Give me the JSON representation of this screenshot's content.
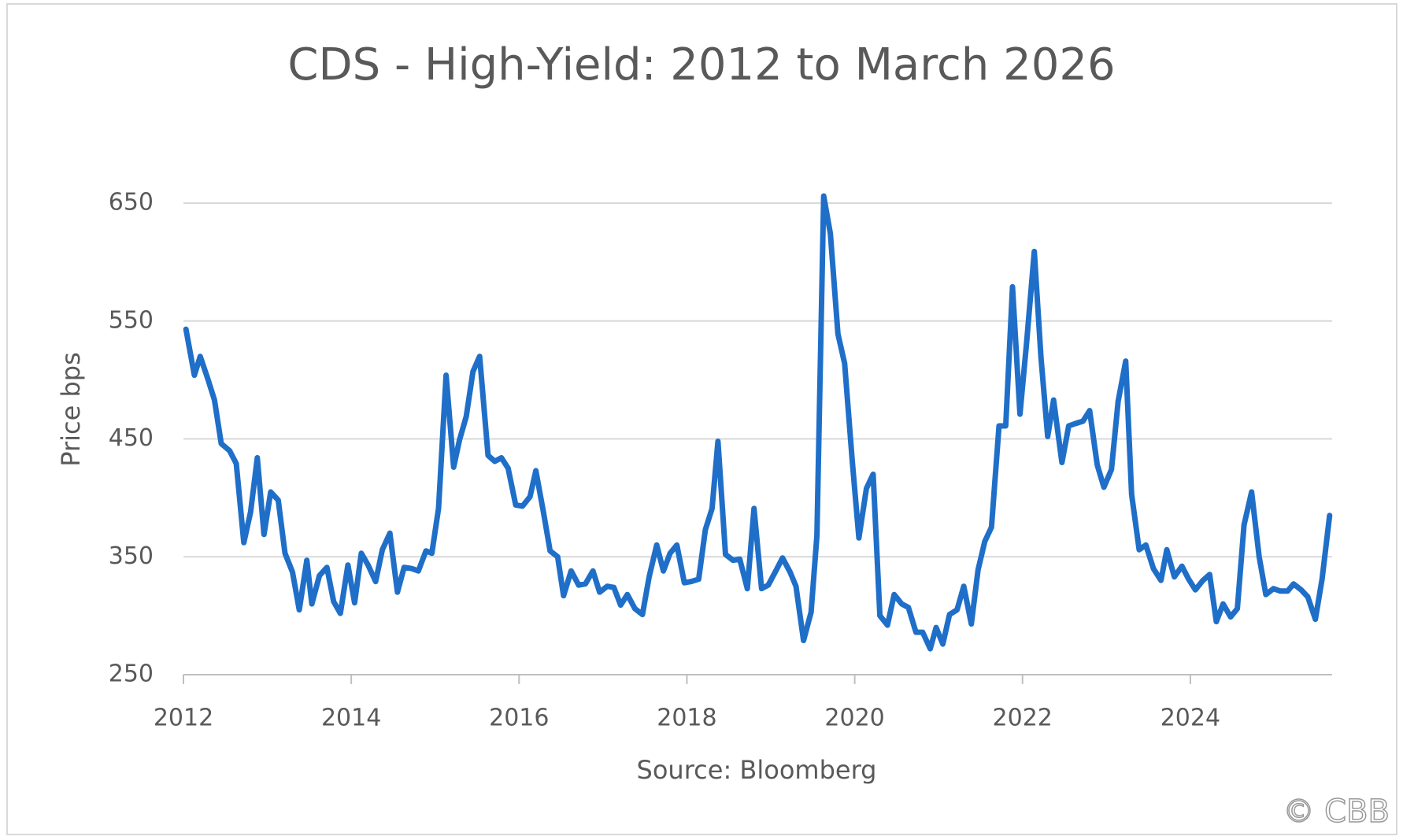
{
  "chart_data": {
    "type": "line",
    "title": "CDS - High-Yield: 2012 to March 2026",
    "y_label": "Price bps",
    "x_label": "Source: Bloomberg",
    "watermark": "© CBB",
    "x": [
      2012.03,
      2012.13,
      2012.2,
      2012.29,
      2012.37,
      2012.45,
      2012.55,
      2012.63,
      2012.72,
      2012.8,
      2012.88,
      2012.96,
      2013.04,
      2013.13,
      2013.21,
      2013.3,
      2013.38,
      2013.47,
      2013.53,
      2013.62,
      2013.71,
      2013.79,
      2013.87,
      2013.96,
      2014.04,
      2014.12,
      2014.2,
      2014.29,
      2014.37,
      2014.46,
      2014.55,
      2014.63,
      2014.72,
      2014.8,
      2014.89,
      2014.96,
      2015.04,
      2015.13,
      2015.22,
      2015.29,
      2015.37,
      2015.45,
      2015.53,
      2015.63,
      2015.71,
      2015.79,
      2015.87,
      2015.96,
      2016.04,
      2016.13,
      2016.2,
      2016.29,
      2016.37,
      2016.46,
      2016.53,
      2016.62,
      2016.71,
      2016.79,
      2016.88,
      2016.96,
      2017.05,
      2017.13,
      2017.21,
      2017.29,
      2017.38,
      2017.47,
      2017.55,
      2017.64,
      2017.72,
      2017.8,
      2017.88,
      2017.97,
      2018.05,
      2018.14,
      2018.22,
      2018.3,
      2018.37,
      2018.46,
      2018.55,
      2018.63,
      2018.72,
      2018.8,
      2018.89,
      2018.97,
      2019.06,
      2019.14,
      2019.23,
      2019.3,
      2019.39,
      2019.48,
      2019.55,
      2019.63,
      2019.71,
      2019.8,
      2019.88,
      2019.97,
      2020.05,
      2020.14,
      2020.22,
      2020.3,
      2020.39,
      2020.47,
      2020.56,
      2020.64,
      2020.73,
      2020.81,
      2020.9,
      2020.97,
      2021.05,
      2021.13,
      2021.22,
      2021.3,
      2021.39,
      2021.47,
      2021.55,
      2021.63,
      2021.72,
      2021.8,
      2021.88,
      2021.97,
      2022.05,
      2022.14,
      2022.22,
      2022.3,
      2022.37,
      2022.47,
      2022.55,
      2022.63,
      2022.72,
      2022.8,
      2022.89,
      2022.97,
      2023.06,
      2023.14,
      2023.23,
      2023.3,
      2023.39,
      2023.47,
      2023.56,
      2023.65,
      2023.72,
      2023.81,
      2023.9,
      2023.98,
      2024.06,
      2024.15,
      2024.23,
      2024.31,
      2024.39,
      2024.48,
      2024.56,
      2024.64,
      2024.73,
      2024.82,
      2024.9,
      2024.99,
      2025.07,
      2025.16,
      2025.23,
      2025.32,
      2025.4,
      2025.49,
      2025.57,
      2025.66
    ],
    "series": [
      {
        "name": "CDS High-Yield",
        "color": "#1f6fc9",
        "values": [
          543,
          504,
          520,
          501,
          483,
          446,
          440,
          429,
          362,
          388,
          434,
          369,
          405,
          398,
          353,
          337,
          305,
          347,
          310,
          334,
          341,
          312,
          302,
          343,
          311,
          353,
          343,
          329,
          356,
          370,
          320,
          341,
          340,
          338,
          355,
          353,
          391,
          504,
          426,
          449,
          469,
          507,
          520,
          436,
          431,
          434,
          425,
          394,
          393,
          401,
          423,
          388,
          355,
          350,
          317,
          338,
          326,
          327,
          338,
          320,
          325,
          324,
          309,
          318,
          306,
          301,
          333,
          360,
          338,
          353,
          360,
          328,
          329,
          331,
          373,
          391,
          448,
          352,
          347,
          348,
          323,
          391,
          323,
          326,
          338,
          349,
          337,
          325,
          279,
          303,
          368,
          656,
          624,
          539,
          514,
          432,
          366,
          408,
          420,
          300,
          292,
          318,
          310,
          307,
          286,
          286,
          272,
          290,
          276,
          301,
          305,
          325,
          293,
          339,
          363,
          375,
          461,
          461,
          579,
          471,
          533,
          609,
          519,
          452,
          483,
          430,
          461,
          463,
          465,
          474,
          428,
          409,
          424,
          482,
          516,
          403,
          356,
          360,
          340,
          330,
          356,
          333,
          342,
          331,
          322,
          330,
          335,
          295,
          310,
          299,
          306,
          377,
          405,
          350,
          318,
          323,
          321,
          321,
          327,
          322,
          316,
          297,
          331,
          385
        ]
      }
    ],
    "xlim": [
      2012,
      2025.69
    ],
    "xticks": [
      2012,
      2014,
      2016,
      2018,
      2020,
      2022,
      2024
    ],
    "ylim": [
      250,
      650
    ],
    "yticks": [
      250,
      350,
      450,
      550,
      650
    ],
    "grid": true
  }
}
